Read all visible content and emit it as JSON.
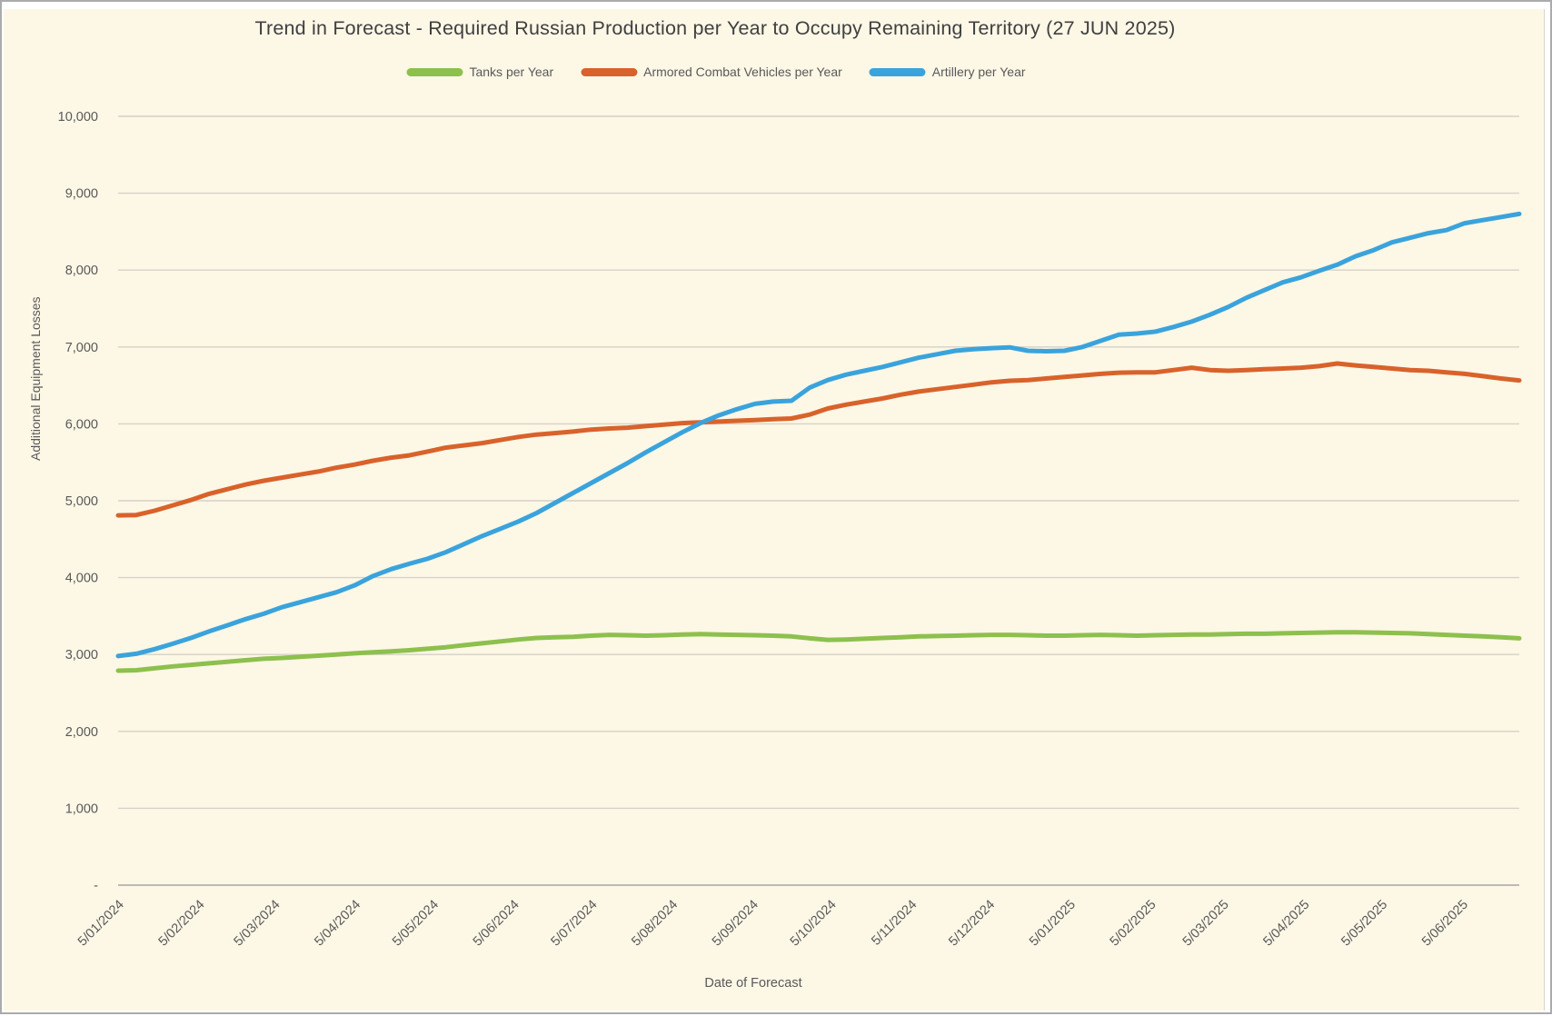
{
  "window": {
    "page_background": "#FFFFFF",
    "chart_background": "#FDF7E6",
    "border_color": "#ABABAB",
    "text_color": "#595959",
    "title_color": "#404040",
    "gridline_color": "#D6D2C7",
    "axis_line_color": "#BDBAB1"
  },
  "chart_data": {
    "type": "line",
    "title": "Trend in Forecast - Required Russian Production per Year to Occupy Remaining Territory (27 JUN 2025)",
    "xlabel": "Date of Forecast",
    "ylabel": "Additional Equipment Losses",
    "ylim": [
      0,
      10000
    ],
    "grid": "horizontal",
    "legend_position": "top",
    "y_tick_labels": [
      "-",
      "1,000",
      "2,000",
      "3,000",
      "4,000",
      "5,000",
      "6,000",
      "7,000",
      "8,000",
      "9,000",
      "10,000"
    ],
    "x_tick_labels": [
      "5/01/2024",
      "5/02/2024",
      "5/03/2024",
      "5/04/2024",
      "5/05/2024",
      "5/06/2024",
      "5/07/2024",
      "5/08/2024",
      "5/09/2024",
      "5/10/2024",
      "5/11/2024",
      "5/12/2024",
      "5/01/2025",
      "5/02/2025",
      "5/03/2025",
      "5/04/2025",
      "5/05/2025",
      "5/06/2025"
    ],
    "x_tick_dates": [
      "2024-01-05",
      "2024-02-05",
      "2024-03-05",
      "2024-04-05",
      "2024-05-05",
      "2024-06-05",
      "2024-07-05",
      "2024-08-05",
      "2024-09-05",
      "2024-10-05",
      "2024-11-05",
      "2024-12-05",
      "2025-01-05",
      "2025-02-05",
      "2025-03-05",
      "2025-04-05",
      "2025-05-05",
      "2025-06-05"
    ],
    "x": [
      "2024-01-05",
      "2024-01-12",
      "2024-01-19",
      "2024-01-26",
      "2024-02-02",
      "2024-02-09",
      "2024-02-16",
      "2024-02-23",
      "2024-03-01",
      "2024-03-08",
      "2024-03-15",
      "2024-03-22",
      "2024-03-29",
      "2024-04-05",
      "2024-04-12",
      "2024-04-19",
      "2024-04-26",
      "2024-05-03",
      "2024-05-10",
      "2024-05-17",
      "2024-05-24",
      "2024-05-31",
      "2024-06-07",
      "2024-06-14",
      "2024-06-21",
      "2024-06-28",
      "2024-07-05",
      "2024-07-12",
      "2024-07-19",
      "2024-07-26",
      "2024-08-02",
      "2024-08-09",
      "2024-08-16",
      "2024-08-23",
      "2024-08-30",
      "2024-09-06",
      "2024-09-13",
      "2024-09-20",
      "2024-09-27",
      "2024-10-04",
      "2024-10-11",
      "2024-10-18",
      "2024-10-25",
      "2024-11-01",
      "2024-11-08",
      "2024-11-15",
      "2024-11-22",
      "2024-11-29",
      "2024-12-06",
      "2024-12-13",
      "2024-12-20",
      "2024-12-27",
      "2025-01-03",
      "2025-01-10",
      "2025-01-17",
      "2025-01-24",
      "2025-01-31",
      "2025-02-07",
      "2025-02-14",
      "2025-02-21",
      "2025-02-28",
      "2025-03-07",
      "2025-03-14",
      "2025-03-21",
      "2025-03-28",
      "2025-04-04",
      "2025-04-11",
      "2025-04-18",
      "2025-04-25",
      "2025-05-02",
      "2025-05-09",
      "2025-05-16",
      "2025-05-23",
      "2025-05-30",
      "2025-06-06",
      "2025-06-13",
      "2025-06-20",
      "2025-06-27"
    ],
    "series": [
      {
        "name": "Tanks per Year",
        "color": "#8DC04D",
        "values": [
          2790,
          2795,
          2820,
          2845,
          2865,
          2885,
          2905,
          2925,
          2945,
          2955,
          2970,
          2985,
          3000,
          3015,
          3030,
          3040,
          3055,
          3075,
          3095,
          3120,
          3145,
          3170,
          3195,
          3215,
          3225,
          3230,
          3245,
          3255,
          3250,
          3245,
          3250,
          3260,
          3265,
          3260,
          3255,
          3250,
          3245,
          3235,
          3210,
          3190,
          3195,
          3205,
          3215,
          3225,
          3235,
          3240,
          3245,
          3250,
          3255,
          3255,
          3250,
          3245,
          3245,
          3250,
          3255,
          3250,
          3245,
          3250,
          3255,
          3260,
          3260,
          3265,
          3270,
          3270,
          3275,
          3280,
          3285,
          3290,
          3290,
          3285,
          3280,
          3275,
          3265,
          3255,
          3245,
          3235,
          3225,
          3210
        ]
      },
      {
        "name": "Armored Combat Vehicles per Year",
        "color": "#D9622B",
        "values": [
          4810,
          4815,
          4870,
          4940,
          5010,
          5090,
          5150,
          5210,
          5260,
          5300,
          5340,
          5380,
          5430,
          5470,
          5520,
          5560,
          5590,
          5640,
          5690,
          5720,
          5750,
          5790,
          5830,
          5860,
          5880,
          5900,
          5925,
          5940,
          5950,
          5970,
          5990,
          6010,
          6020,
          6030,
          6040,
          6050,
          6060,
          6070,
          6120,
          6200,
          6250,
          6290,
          6330,
          6380,
          6420,
          6450,
          6480,
          6510,
          6540,
          6560,
          6570,
          6590,
          6610,
          6630,
          6650,
          6665,
          6670,
          6670,
          6700,
          6730,
          6700,
          6690,
          6700,
          6710,
          6720,
          6730,
          6750,
          6785,
          6760,
          6740,
          6720,
          6700,
          6690,
          6670,
          6650,
          6620,
          6590,
          6565
        ]
      },
      {
        "name": "Artillery per Year",
        "color": "#3AA3DC",
        "values": [
          2980,
          3010,
          3070,
          3140,
          3215,
          3300,
          3380,
          3460,
          3530,
          3615,
          3680,
          3745,
          3810,
          3900,
          4020,
          4110,
          4180,
          4245,
          4330,
          4435,
          4540,
          4635,
          4730,
          4840,
          4970,
          5100,
          5230,
          5360,
          5490,
          5630,
          5760,
          5890,
          6010,
          6110,
          6190,
          6260,
          6290,
          6300,
          6470,
          6570,
          6640,
          6690,
          6740,
          6800,
          6860,
          6905,
          6950,
          6970,
          6985,
          6995,
          6950,
          6945,
          6950,
          7000,
          7080,
          7160,
          7175,
          7200,
          7260,
          7330,
          7420,
          7520,
          7640,
          7740,
          7840,
          7905,
          7990,
          8070,
          8180,
          8260,
          8360,
          8420,
          8480,
          8520,
          8610,
          8650,
          8690,
          8730
        ]
      }
    ]
  }
}
